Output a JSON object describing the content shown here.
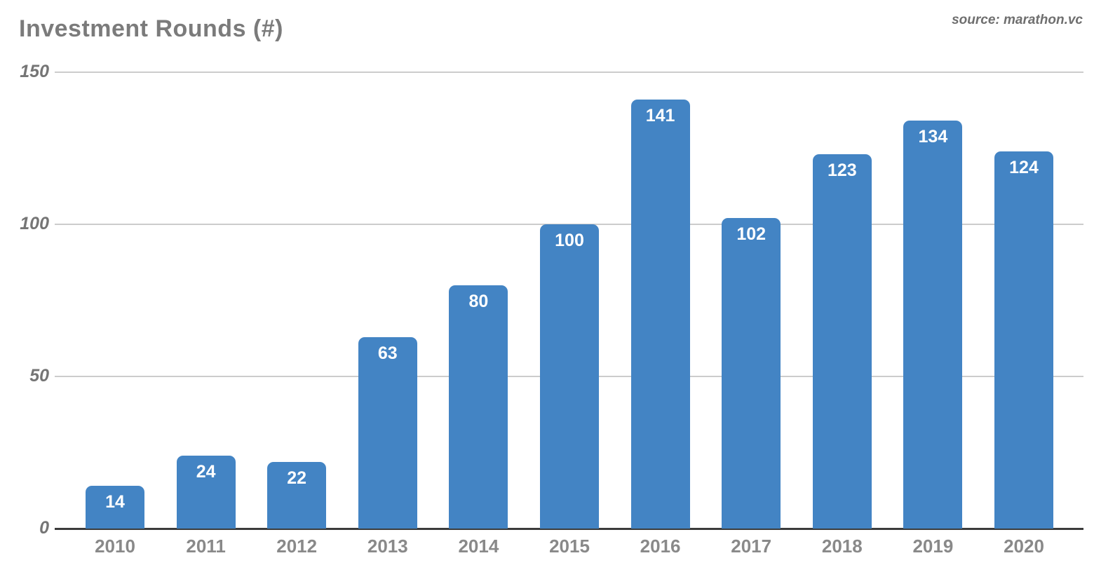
{
  "header": {
    "title": "Investment Rounds (#)",
    "source": "source: marathon.vc"
  },
  "chart_data": {
    "type": "bar",
    "title": "Investment Rounds (#)",
    "source_note": "source: marathon.vc",
    "categories": [
      "2010",
      "2011",
      "2012",
      "2013",
      "2014",
      "2015",
      "2016",
      "2017",
      "2018",
      "2019",
      "2020"
    ],
    "values": [
      14,
      24,
      22,
      63,
      80,
      100,
      141,
      102,
      123,
      134,
      124
    ],
    "xlabel": "",
    "ylabel": "",
    "ylim": [
      0,
      150
    ],
    "yticks": [
      0,
      50,
      100,
      150
    ],
    "grid": true,
    "legend": "none",
    "bar_color": "#4384c4",
    "bar_label_color": "#ffffff",
    "gridline_color": "#cccccc",
    "axis_line_color": "#3b3b3b",
    "tick_label_color": "#757575",
    "category_label_color": "#898989",
    "title_color": "#7b7b7b"
  }
}
